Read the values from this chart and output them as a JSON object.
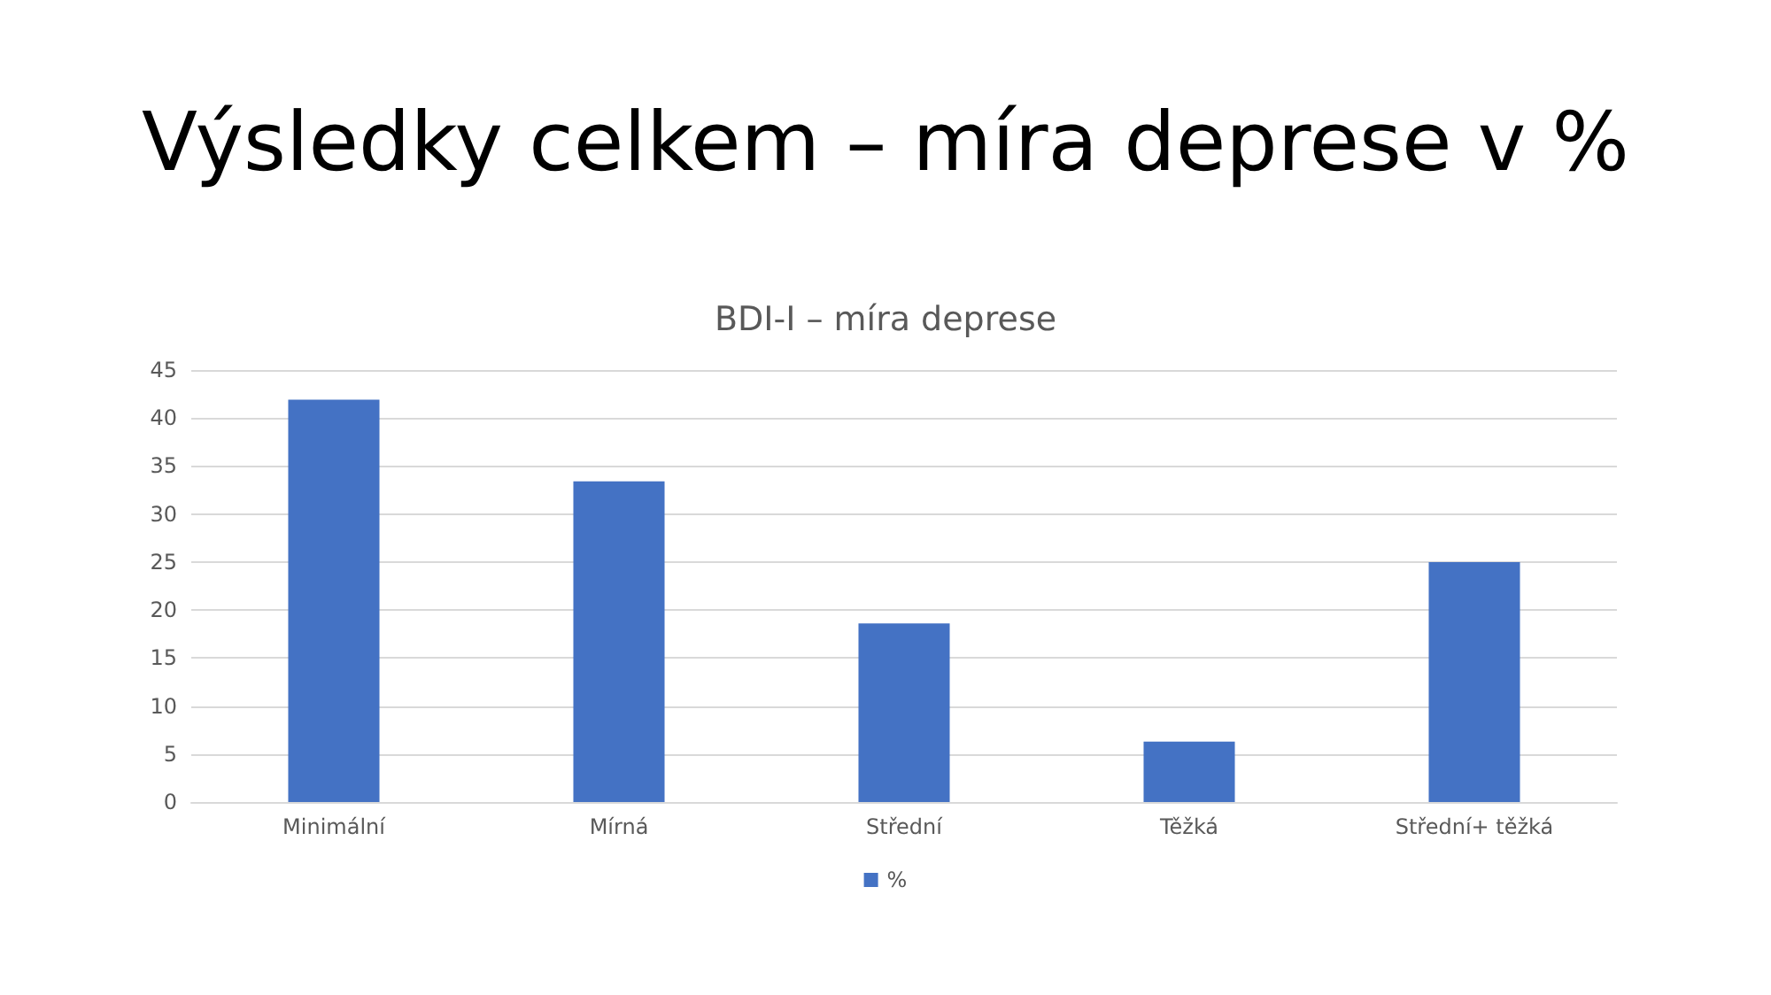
{
  "chart_data": {
    "type": "bar",
    "title": "Výsledky celkem – míra deprese v %",
    "subtitle": "BDI-I – míra deprese",
    "categories": [
      "Minimální",
      "Mírná",
      "Střední",
      "Těžká",
      "Střední+ těžká"
    ],
    "series": [
      {
        "name": "%",
        "color": "#4472c4",
        "values": [
          41.9,
          33.4,
          18.6,
          6.3,
          25
        ]
      }
    ],
    "ylim": [
      0,
      45
    ],
    "yticks": [
      0,
      5,
      10,
      15,
      20,
      25,
      30,
      35,
      40,
      45
    ],
    "grid": "y",
    "legend": "bottom"
  }
}
